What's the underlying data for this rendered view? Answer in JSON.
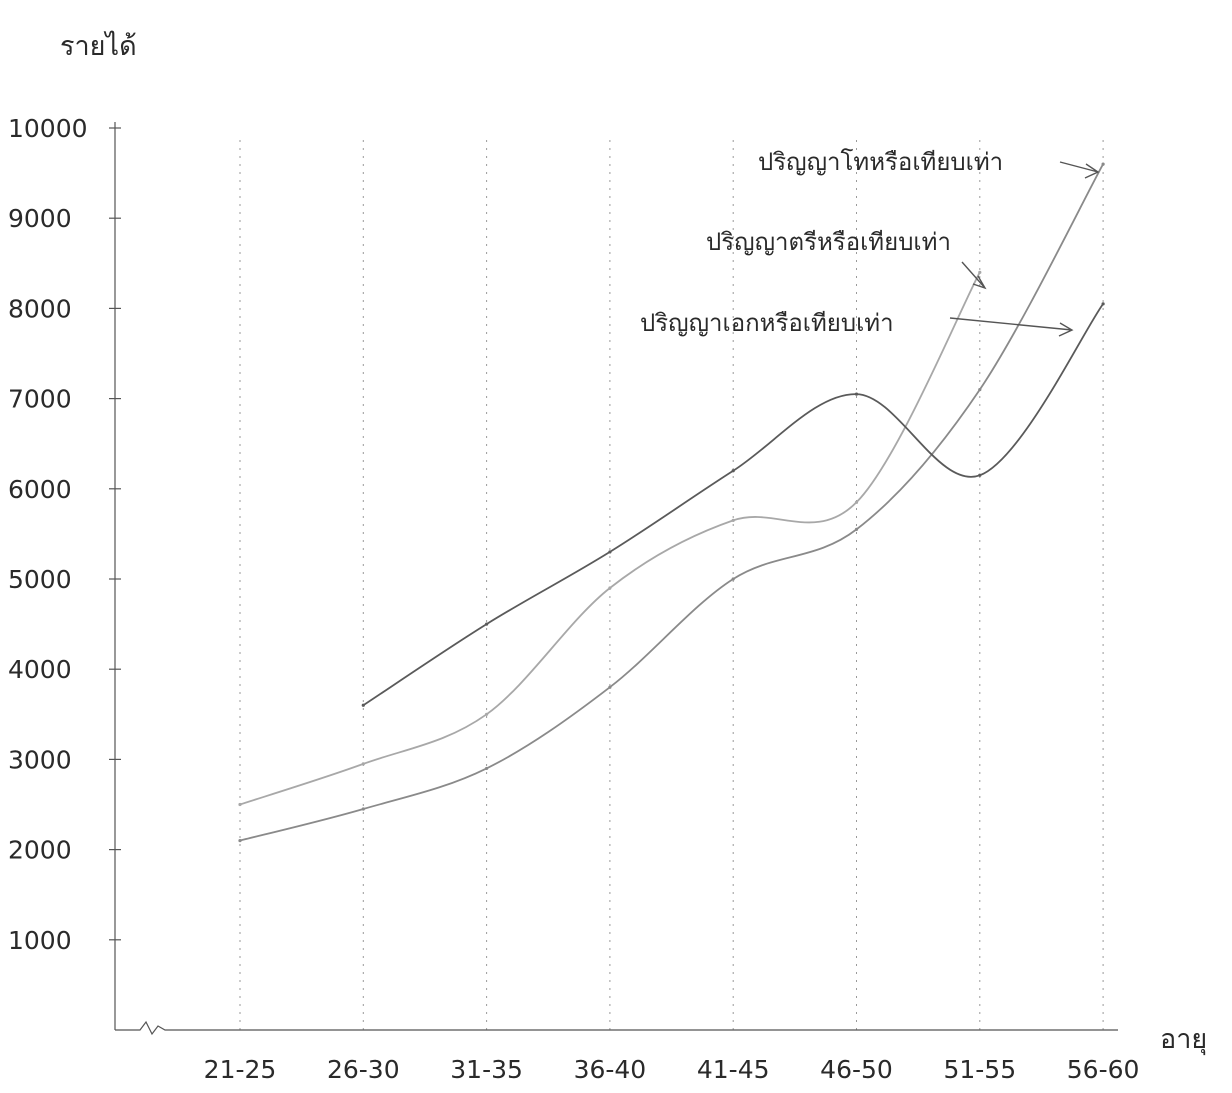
{
  "chart_data": {
    "type": "line",
    "ylabel": "รายได้",
    "xlabel": "อายุ",
    "ylim": [
      0,
      10000
    ],
    "yticks": [
      "10000",
      "9000",
      "8000",
      "7000",
      "6000",
      "5000",
      "4000",
      "3000",
      "2000",
      "1000"
    ],
    "categories": [
      "21-25",
      "26-30",
      "31-35",
      "36-40",
      "41-45",
      "46-50",
      "51-55",
      "56-60"
    ],
    "grid": "vertical dashed lines at each age group",
    "series": [
      {
        "name": "ปริญญาโทหรือเทียบเท่า",
        "values": [
          2100,
          2450,
          2900,
          3800,
          5000,
          5550,
          7100,
          9600
        ],
        "color": "#8a8a8a"
      },
      {
        "name": "ปริญญาตรีหรือเทียบเท่า",
        "values": [
          2500,
          2950,
          3500,
          4900,
          5650,
          5850,
          8400,
          null
        ],
        "color": "#a8a8a8"
      },
      {
        "name": "ปริญญาเอกหรือเทียบเท่า",
        "values": [
          null,
          3600,
          4500,
          5300,
          6200,
          7050,
          6150,
          8050
        ],
        "color": "#5a5a5a"
      }
    ]
  }
}
